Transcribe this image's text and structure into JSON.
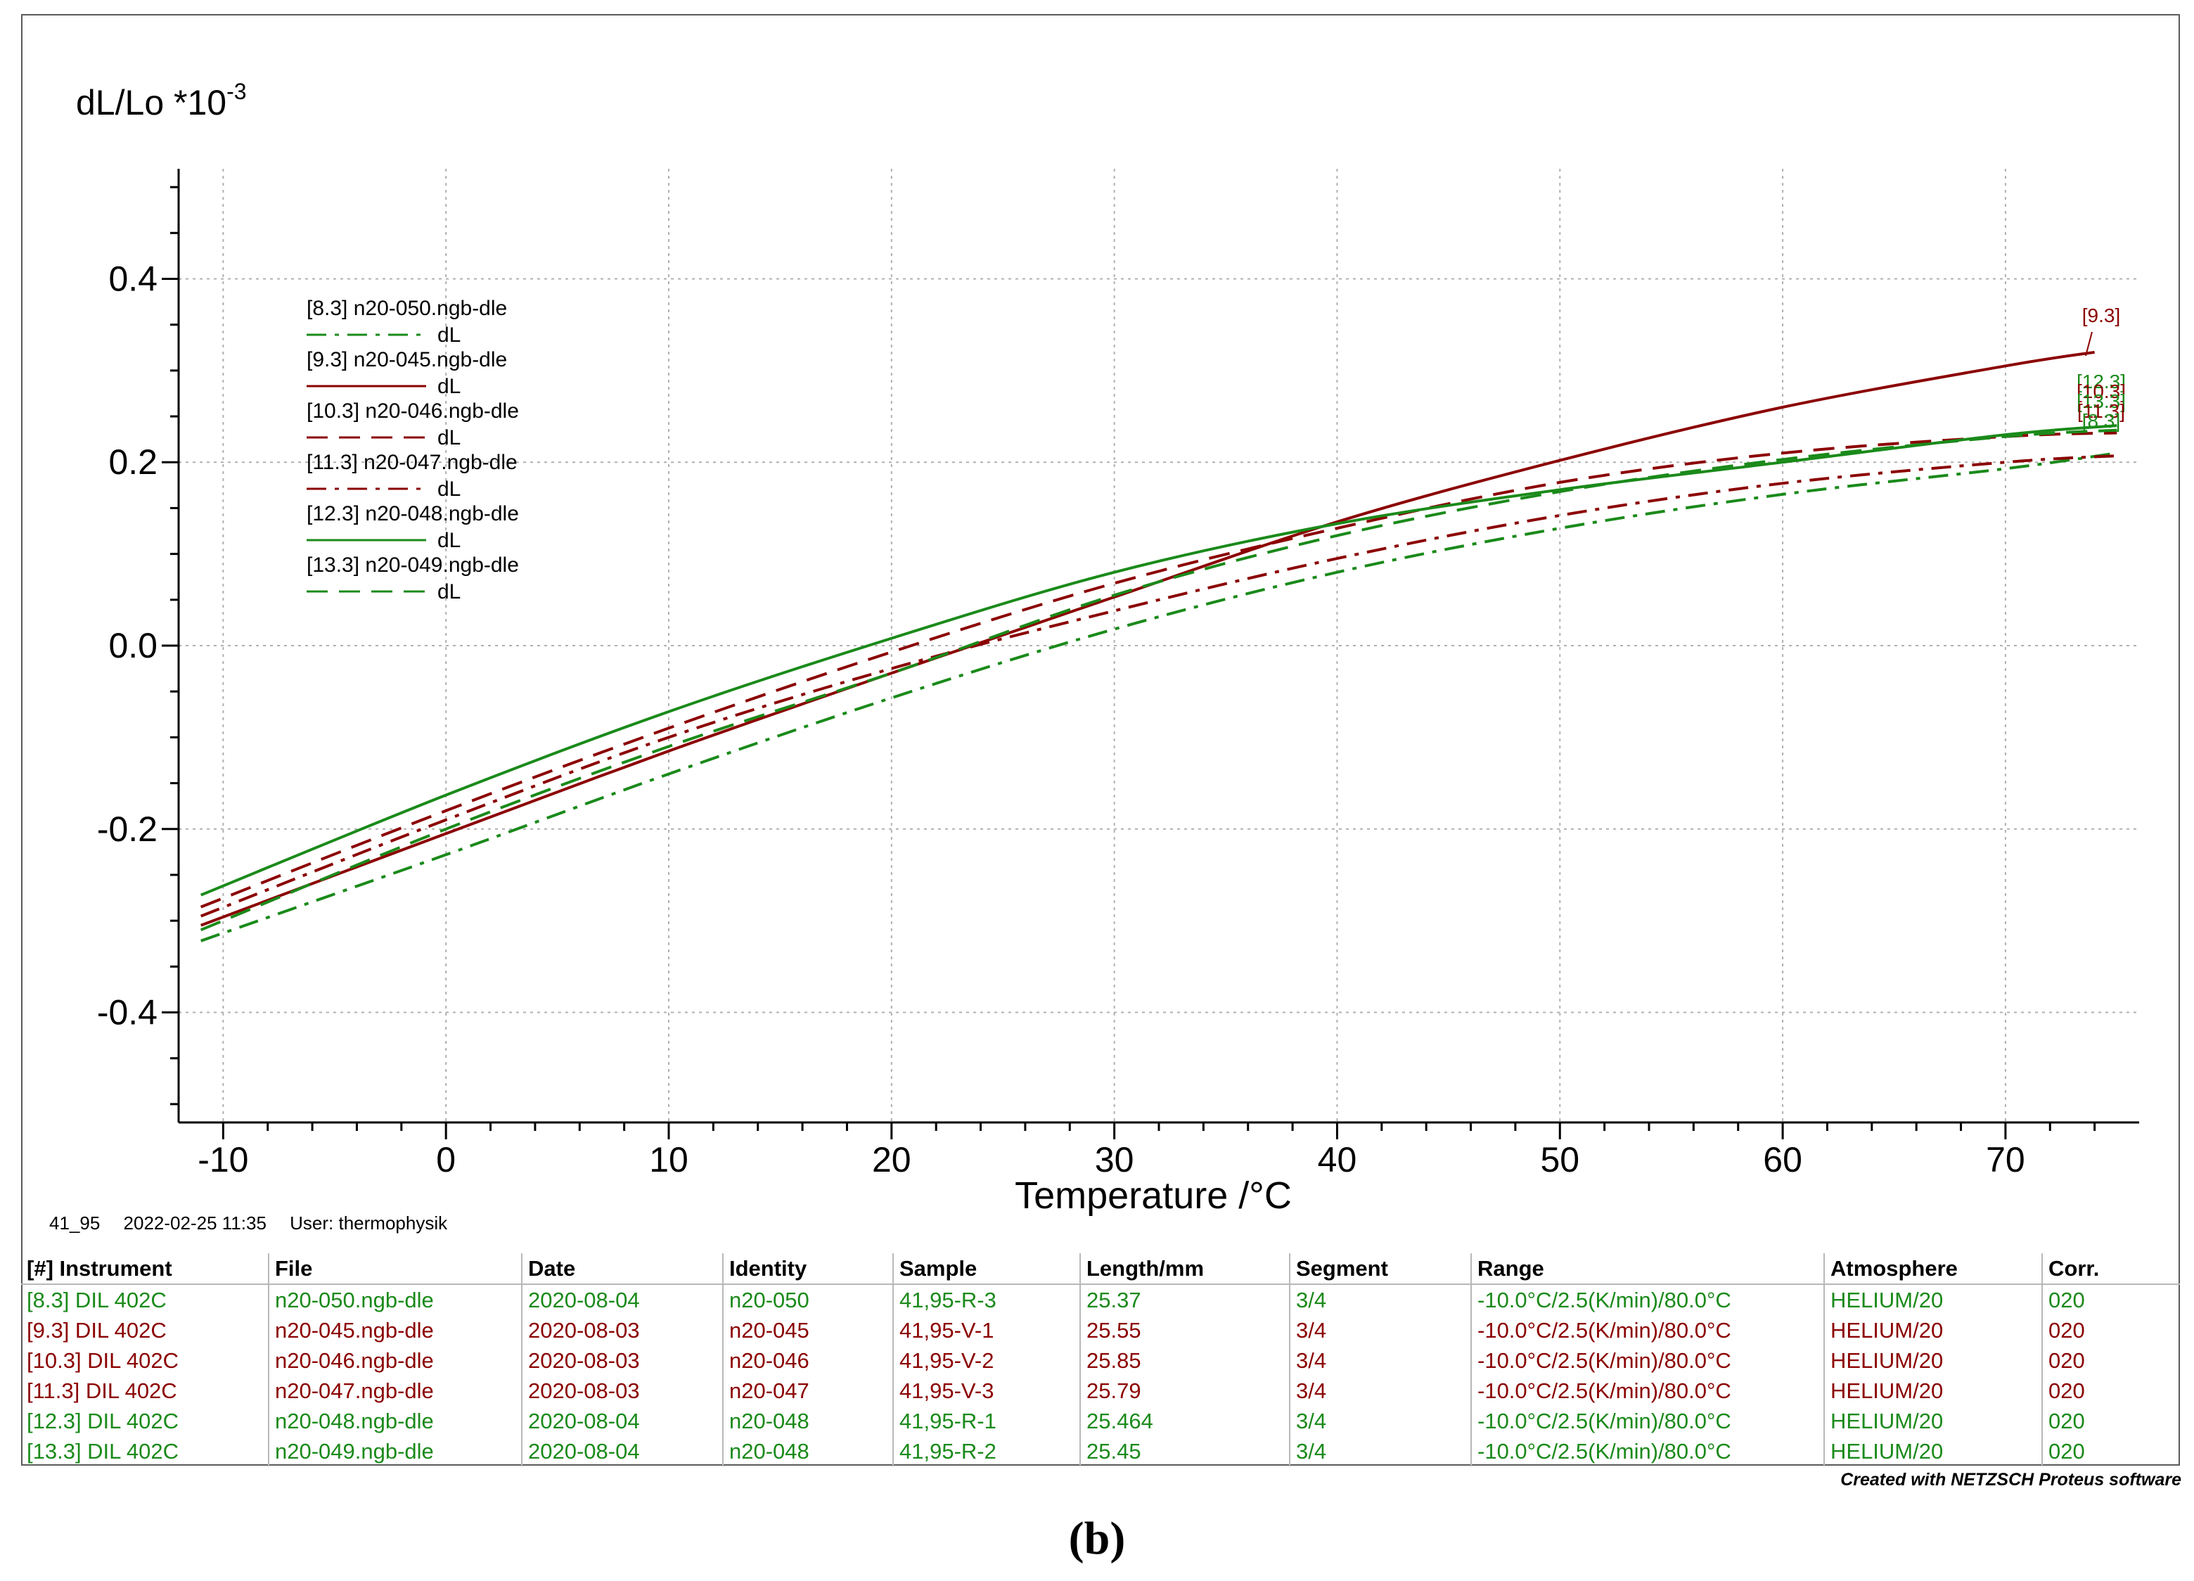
{
  "chart_data": {
    "type": "line",
    "title": "",
    "xlabel": "Temperature /°C",
    "ylabel": "dL/Lo *10",
    "ylabel_exponent": "-3",
    "xlim": [
      -12,
      76
    ],
    "ylim": [
      -0.52,
      0.52
    ],
    "x_ticks": [
      -10,
      0,
      10,
      20,
      30,
      40,
      50,
      60,
      70
    ],
    "x_tick_labels": [
      "-10",
      "0",
      "10",
      "20",
      "30",
      "40",
      "50",
      "60",
      "70"
    ],
    "y_ticks": [
      -0.4,
      -0.2,
      0.0,
      0.2,
      0.4
    ],
    "y_tick_labels": [
      "-0.4",
      "-0.2",
      "0.0",
      "0.2",
      "0.4"
    ],
    "grid": true,
    "legend_position": "top-left",
    "series": [
      {
        "id": "[8.3]",
        "name": "[8.3] n20-050.ngb-dle",
        "sub": "dL",
        "color": "#1a8a1a",
        "dash": "dashdot",
        "x": [
          -11,
          0,
          10,
          20,
          30,
          40,
          50,
          60,
          70,
          75
        ],
        "y": [
          -0.322,
          -0.228,
          -0.14,
          -0.057,
          0.018,
          0.08,
          0.128,
          0.165,
          0.193,
          0.21
        ]
      },
      {
        "id": "[9.3]",
        "name": "[9.3] n20-045.ngb-dle",
        "sub": "dL",
        "color": "#8b0000",
        "dash": "solid",
        "x": [
          -11,
          0,
          10,
          20,
          30,
          40,
          50,
          60,
          70,
          74
        ],
        "y": [
          -0.305,
          -0.205,
          -0.115,
          -0.03,
          0.053,
          0.135,
          0.202,
          0.26,
          0.305,
          0.32
        ]
      },
      {
        "id": "[10.3]",
        "name": "[10.3] n20-046.ngb-dle",
        "sub": "dL",
        "color": "#8b0000",
        "dash": "dash",
        "x": [
          -11,
          0,
          10,
          20,
          30,
          40,
          50,
          60,
          70,
          75
        ],
        "y": [
          -0.285,
          -0.18,
          -0.09,
          -0.007,
          0.068,
          0.128,
          0.178,
          0.21,
          0.228,
          0.232
        ]
      },
      {
        "id": "[11.3]",
        "name": "[11.3] n20-047.ngb-dle",
        "sub": "dL",
        "color": "#8b0000",
        "dash": "dashdot",
        "x": [
          -11,
          0,
          10,
          20,
          30,
          40,
          50,
          60,
          70,
          75
        ],
        "y": [
          -0.295,
          -0.19,
          -0.1,
          -0.025,
          0.038,
          0.095,
          0.142,
          0.177,
          0.2,
          0.207
        ]
      },
      {
        "id": "[12.3]",
        "name": "[12.3] n20-048.ngb-dle",
        "sub": "dL",
        "color": "#1a8a1a",
        "dash": "solid",
        "x": [
          -11,
          0,
          10,
          20,
          30,
          40,
          50,
          60,
          70,
          75
        ],
        "y": [
          -0.272,
          -0.163,
          -0.072,
          0.008,
          0.08,
          0.133,
          0.17,
          0.2,
          0.23,
          0.24
        ]
      },
      {
        "id": "[13.3]",
        "name": "[13.3] n20-049.ngb-dle",
        "sub": "dL",
        "color": "#1a8a1a",
        "dash": "dash",
        "x": [
          -11,
          0,
          10,
          20,
          30,
          40,
          50,
          60,
          70,
          75
        ],
        "y": [
          -0.31,
          -0.2,
          -0.11,
          -0.03,
          0.055,
          0.12,
          0.168,
          0.203,
          0.228,
          0.235
        ]
      }
    ],
    "end_labels": [
      {
        "text": "[9.3]",
        "color": "#8b0000"
      },
      {
        "text": "[12.3]",
        "color": "#1a8a1a"
      },
      {
        "text": "[10.3]",
        "color": "#8b0000"
      },
      {
        "text": "[13.3]",
        "color": "#1a8a1a"
      },
      {
        "text": "[11.3]",
        "color": "#8b0000"
      },
      {
        "text": "[8.3]",
        "color": "#1a8a1a"
      }
    ]
  },
  "info": {
    "code": "41_95",
    "timestamp": "2022-02-25 11:35",
    "user": "User: thermophysik"
  },
  "table": {
    "headers": [
      "[#] Instrument",
      "File",
      "Date",
      "Identity",
      "Sample",
      "Length/mm",
      "Segment",
      "Range",
      "Atmosphere",
      "Corr."
    ],
    "rows": [
      {
        "color": "#1a8a1a",
        "cells": [
          "[8.3] DIL 402C",
          "n20-050.ngb-dle",
          "2020-08-04",
          "n20-050",
          "41,95-R-3",
          "25.37",
          "3/4",
          "-10.0°C/2.5(K/min)/80.0°C",
          "HELIUM/20",
          "020"
        ]
      },
      {
        "color": "#8b0000",
        "cells": [
          "[9.3] DIL 402C",
          "n20-045.ngb-dle",
          "2020-08-03",
          "n20-045",
          "41,95-V-1",
          "25.55",
          "3/4",
          "-10.0°C/2.5(K/min)/80.0°C",
          "HELIUM/20",
          "020"
        ]
      },
      {
        "color": "#8b0000",
        "cells": [
          "[10.3] DIL 402C",
          "n20-046.ngb-dle",
          "2020-08-03",
          "n20-046",
          "41,95-V-2",
          "25.85",
          "3/4",
          "-10.0°C/2.5(K/min)/80.0°C",
          "HELIUM/20",
          "020"
        ]
      },
      {
        "color": "#8b0000",
        "cells": [
          "[11.3] DIL 402C",
          "n20-047.ngb-dle",
          "2020-08-03",
          "n20-047",
          "41,95-V-3",
          "25.79",
          "3/4",
          "-10.0°C/2.5(K/min)/80.0°C",
          "HELIUM/20",
          "020"
        ]
      },
      {
        "color": "#1a8a1a",
        "cells": [
          "[12.3] DIL 402C",
          "n20-048.ngb-dle",
          "2020-08-04",
          "n20-048",
          "41,95-R-1",
          "25.464",
          "3/4",
          "-10.0°C/2.5(K/min)/80.0°C",
          "HELIUM/20",
          "020"
        ]
      },
      {
        "color": "#1a8a1a",
        "cells": [
          "[13.3] DIL 402C",
          "n20-049.ngb-dle",
          "2020-08-04",
          "n20-048",
          "41,95-R-2",
          "25.45",
          "3/4",
          "-10.0°C/2.5(K/min)/80.0°C",
          "HELIUM/20",
          "020"
        ]
      }
    ]
  },
  "credit": "Created with NETZSCH Proteus software",
  "panel_label": "(b)"
}
